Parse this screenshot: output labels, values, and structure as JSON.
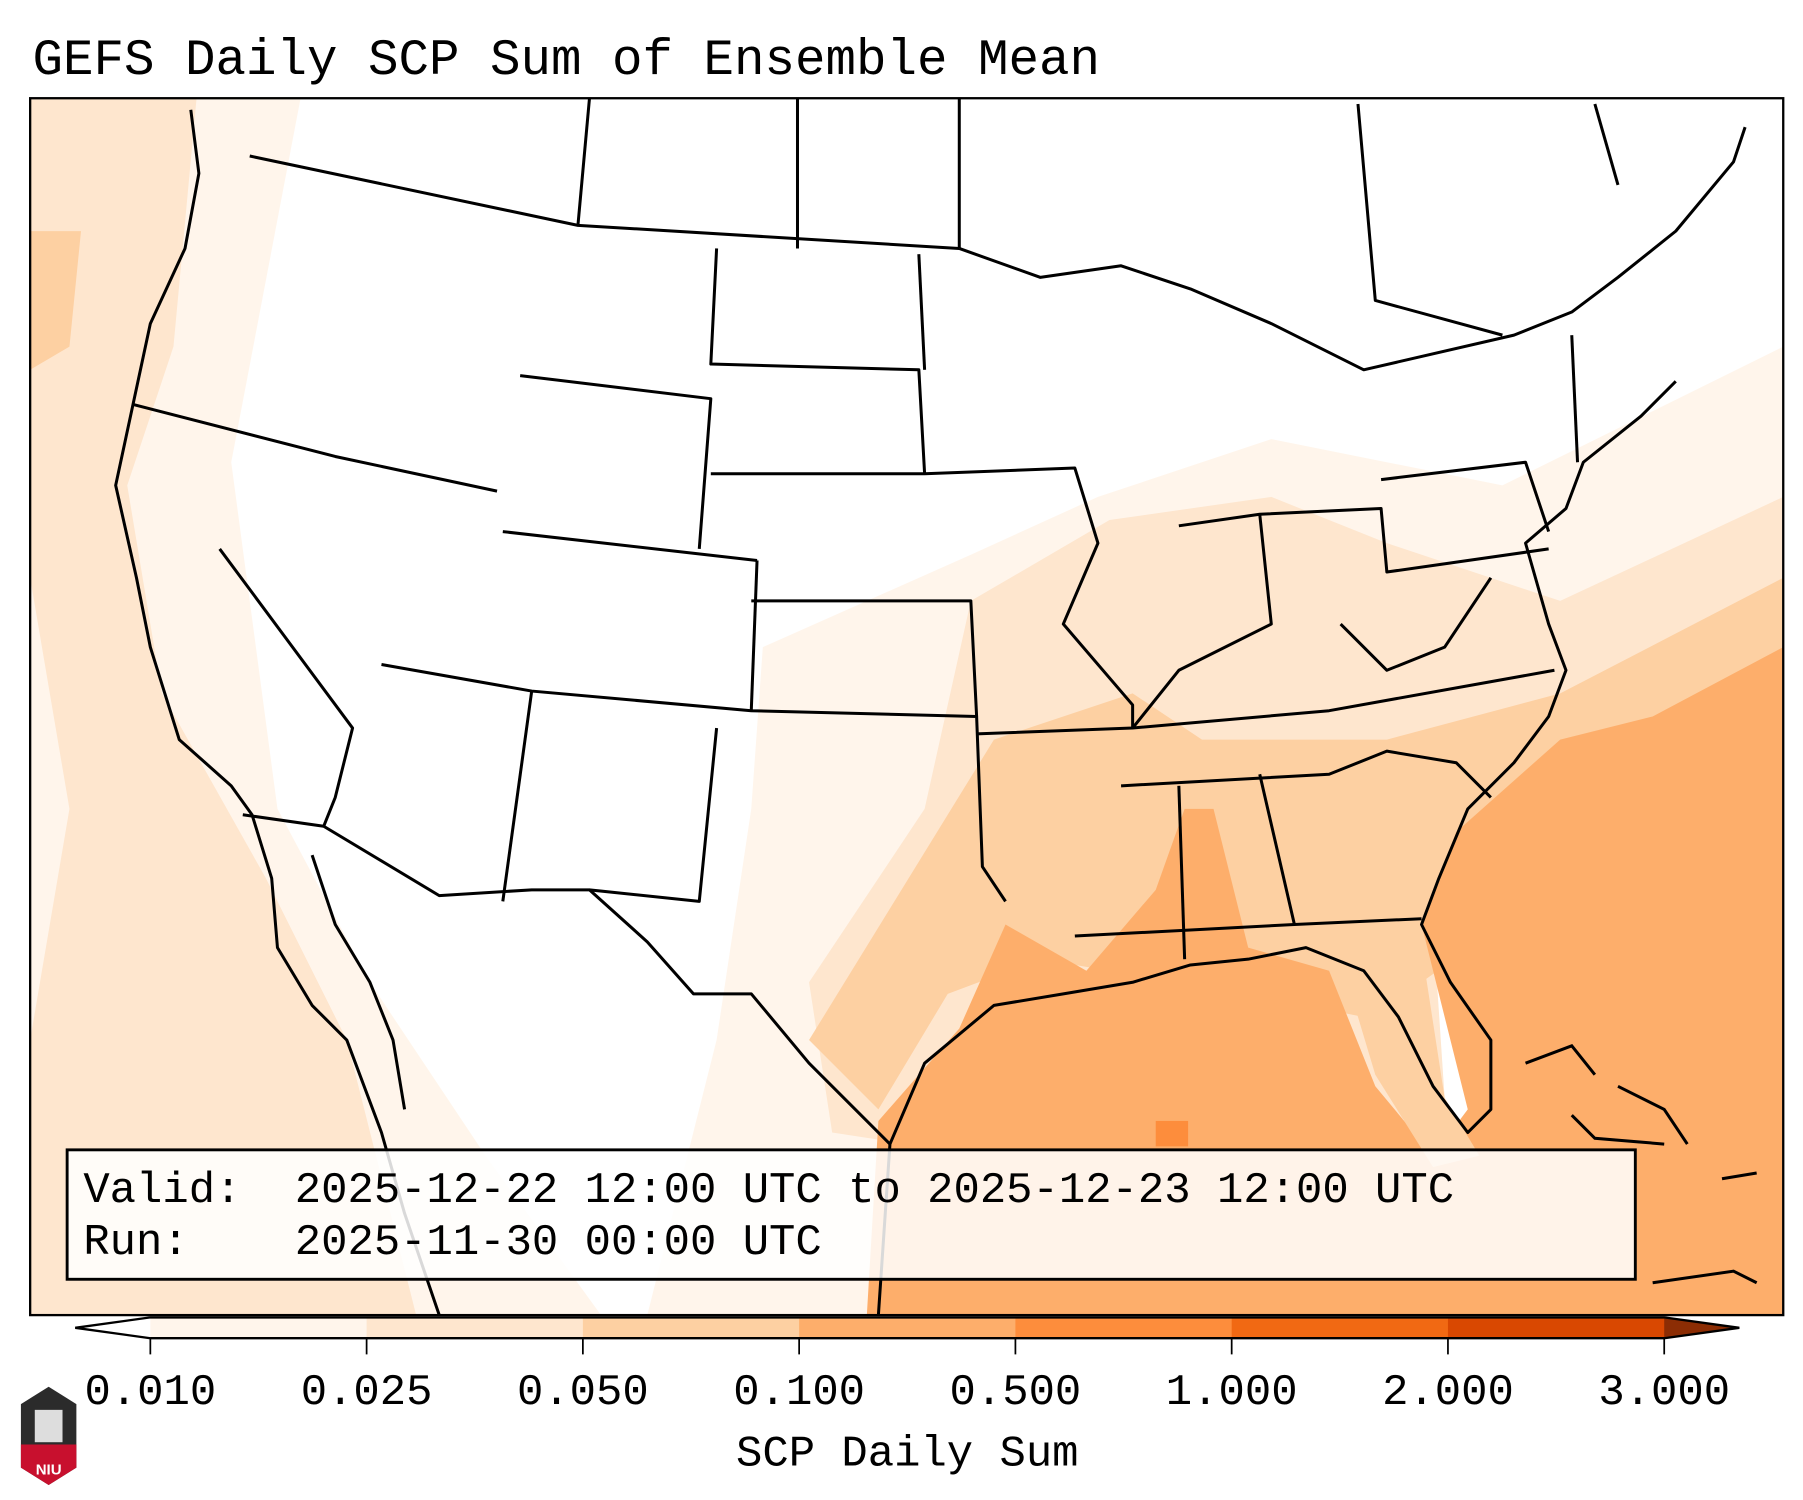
{
  "title": "GEFS Daily SCP Sum of Ensemble Mean",
  "info_box": {
    "valid_label": "Valid:",
    "valid_value": "2025-12-22 12:00 UTC to 2025-12-23 12:00 UTC",
    "run_label": "Run:",
    "run_value": "2025-11-30 00:00 UTC"
  },
  "colorbar": {
    "label": "SCP Daily Sum",
    "ticks": [
      "0.010",
      "0.025",
      "0.050",
      "0.100",
      "0.500",
      "1.000",
      "2.000",
      "3.000"
    ],
    "colors": [
      "#fff5eb",
      "#fee6ce",
      "#fdd0a2",
      "#fdae6b",
      "#fd8d3c",
      "#f16913",
      "#d94801"
    ],
    "under_color": "#ffffff",
    "over_color": "#8c2d04"
  },
  "logo": {
    "text": "NIU"
  }
}
